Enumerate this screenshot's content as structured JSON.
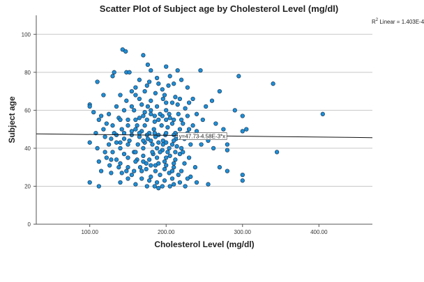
{
  "chart_data": {
    "type": "scatter",
    "title": "Scatter Plot of Subject age by Cholesterol Level (mg/dl)",
    "xlabel": "Cholesterol Level (mg/dl)",
    "ylabel": "Subject age",
    "xlim": [
      30,
      470
    ],
    "ylim": [
      0,
      110
    ],
    "x_ticks": [
      100,
      200,
      300,
      400
    ],
    "x_tick_labels": [
      "100.00",
      "200.00",
      "300.00",
      "400.00"
    ],
    "y_ticks": [
      0,
      20,
      40,
      60,
      80,
      100
    ],
    "y_tick_labels": [
      "0",
      "20",
      "40",
      "60",
      "80",
      "100"
    ],
    "grid": "horizontal",
    "fit_line": {
      "intercept": 47.73,
      "slope": -0.00458,
      "label": "y=47.73-4.58E-3*x"
    },
    "r2_text": "R",
    "r2_sup": "2",
    "r2_rest": " Linear = 1.403E-4",
    "marker_color": "#1f8fd6",
    "marker_edge": "#1a3a5a",
    "points": [
      [
        143,
        92
      ],
      [
        147,
        91
      ],
      [
        170,
        89
      ],
      [
        132,
        80
      ],
      [
        148,
        80
      ],
      [
        180,
        81
      ],
      [
        200,
        83
      ],
      [
        215,
        81
      ],
      [
        205,
        78
      ],
      [
        188,
        77
      ],
      [
        245,
        81
      ],
      [
        295,
        78
      ],
      [
        340,
        74
      ],
      [
        405,
        58
      ],
      [
        130,
        78
      ],
      [
        110,
        75
      ],
      [
        160,
        72
      ],
      [
        175,
        73
      ],
      [
        195,
        71
      ],
      [
        210,
        74
      ],
      [
        228,
        72
      ],
      [
        270,
        70
      ],
      [
        118,
        68
      ],
      [
        140,
        68
      ],
      [
        155,
        70
      ],
      [
        165,
        66
      ],
      [
        180,
        65
      ],
      [
        198,
        68
      ],
      [
        212,
        67
      ],
      [
        235,
        66
      ],
      [
        260,
        65
      ],
      [
        290,
        60
      ],
      [
        100,
        63
      ],
      [
        100,
        62
      ],
      [
        105,
        59
      ],
      [
        115,
        57
      ],
      [
        125,
        58
      ],
      [
        135,
        62
      ],
      [
        145,
        60
      ],
      [
        158,
        60
      ],
      [
        172,
        59
      ],
      [
        188,
        62
      ],
      [
        200,
        60
      ],
      [
        215,
        63
      ],
      [
        225,
        61
      ],
      [
        240,
        58
      ],
      [
        252,
        62
      ],
      [
        300,
        57
      ],
      [
        112,
        55
      ],
      [
        122,
        53
      ],
      [
        138,
        56
      ],
      [
        150,
        55
      ],
      [
        162,
        52
      ],
      [
        175,
        55
      ],
      [
        185,
        54
      ],
      [
        195,
        57
      ],
      [
        205,
        56
      ],
      [
        222,
        53
      ],
      [
        235,
        52
      ],
      [
        248,
        55
      ],
      [
        265,
        53
      ],
      [
        275,
        50
      ],
      [
        305,
        50
      ],
      [
        118,
        50
      ],
      [
        132,
        48
      ],
      [
        142,
        50
      ],
      [
        155,
        47
      ],
      [
        168,
        49
      ],
      [
        178,
        48
      ],
      [
        190,
        47
      ],
      [
        202,
        51
      ],
      [
        212,
        48
      ],
      [
        228,
        48
      ],
      [
        240,
        46
      ],
      [
        255,
        44
      ],
      [
        280,
        42
      ],
      [
        300,
        49
      ],
      [
        100,
        43
      ],
      [
        128,
        45
      ],
      [
        140,
        43
      ],
      [
        152,
        44
      ],
      [
        163,
        42
      ],
      [
        172,
        43
      ],
      [
        182,
        42
      ],
      [
        196,
        44
      ],
      [
        208,
        42
      ],
      [
        220,
        40
      ],
      [
        232,
        42
      ],
      [
        246,
        42
      ],
      [
        262,
        40
      ],
      [
        280,
        39
      ],
      [
        345,
        38
      ],
      [
        110,
        40
      ],
      [
        130,
        38
      ],
      [
        145,
        37
      ],
      [
        158,
        38
      ],
      [
        170,
        36
      ],
      [
        183,
        37
      ],
      [
        195,
        39
      ],
      [
        205,
        36
      ],
      [
        218,
        37
      ],
      [
        230,
        35
      ],
      [
        112,
        33
      ],
      [
        128,
        34
      ],
      [
        140,
        32
      ],
      [
        150,
        30
      ],
      [
        162,
        34
      ],
      [
        174,
        32
      ],
      [
        186,
        31
      ],
      [
        198,
        33
      ],
      [
        210,
        30
      ],
      [
        224,
        32
      ],
      [
        238,
        30
      ],
      [
        115,
        28
      ],
      [
        128,
        27
      ],
      [
        142,
        27
      ],
      [
        155,
        26
      ],
      [
        168,
        28
      ],
      [
        180,
        25
      ],
      [
        192,
        26
      ],
      [
        204,
        27
      ],
      [
        216,
        26
      ],
      [
        232,
        25
      ],
      [
        270,
        30
      ],
      [
        280,
        28
      ],
      [
        300,
        26
      ],
      [
        100,
        22
      ],
      [
        112,
        20
      ],
      [
        140,
        22
      ],
      [
        160,
        21
      ],
      [
        175,
        20
      ],
      [
        190,
        19
      ],
      [
        210,
        21
      ],
      [
        240,
        22
      ],
      [
        255,
        21
      ],
      [
        300,
        23
      ],
      [
        145,
        45
      ],
      [
        150,
        42
      ],
      [
        165,
        46
      ],
      [
        176,
        45
      ],
      [
        186,
        46
      ],
      [
        199,
        47
      ],
      [
        213,
        45
      ],
      [
        224,
        45
      ],
      [
        188,
        40
      ],
      [
        196,
        42
      ],
      [
        204,
        40
      ],
      [
        214,
        41
      ],
      [
        170,
        40
      ],
      [
        160,
        38
      ],
      [
        178,
        34
      ],
      [
        188,
        35
      ],
      [
        200,
        35
      ],
      [
        212,
        34
      ],
      [
        166,
        30
      ],
      [
        174,
        29
      ],
      [
        186,
        28
      ],
      [
        198,
        29
      ],
      [
        208,
        28
      ],
      [
        220,
        28
      ],
      [
        150,
        35
      ],
      [
        140,
        40
      ],
      [
        135,
        43
      ],
      [
        125,
        42
      ],
      [
        120,
        38
      ],
      [
        160,
        50
      ],
      [
        172,
        52
      ],
      [
        184,
        50
      ],
      [
        194,
        52
      ],
      [
        208,
        53
      ],
      [
        218,
        50
      ],
      [
        230,
        50
      ],
      [
        155,
        62
      ],
      [
        168,
        63
      ],
      [
        180,
        60
      ],
      [
        192,
        58
      ],
      [
        204,
        58
      ],
      [
        216,
        58
      ],
      [
        228,
        57
      ],
      [
        148,
        65
      ],
      [
        160,
        68
      ],
      [
        172,
        70
      ],
      [
        186,
        69
      ],
      [
        196,
        66
      ],
      [
        208,
        64
      ],
      [
        218,
        66
      ],
      [
        230,
        64
      ],
      [
        165,
        76
      ],
      [
        178,
        75
      ],
      [
        190,
        74
      ],
      [
        203,
        73
      ],
      [
        220,
        76
      ],
      [
        152,
        80
      ],
      [
        176,
        84
      ],
      [
        140,
        55
      ],
      [
        130,
        52
      ],
      [
        120,
        46
      ],
      [
        108,
        48
      ],
      [
        165,
        56
      ],
      [
        185,
        57
      ],
      [
        176,
        62
      ],
      [
        200,
        64
      ],
      [
        170,
        44
      ],
      [
        180,
        44
      ],
      [
        190,
        43
      ],
      [
        200,
        43
      ],
      [
        210,
        44
      ],
      [
        182,
        38
      ],
      [
        192,
        38
      ],
      [
        202,
        38
      ],
      [
        212,
        38
      ],
      [
        222,
        38
      ],
      [
        160,
        33
      ],
      [
        170,
        33
      ],
      [
        180,
        31
      ],
      [
        190,
        32
      ],
      [
        200,
        31
      ],
      [
        210,
        32
      ],
      [
        168,
        24
      ],
      [
        178,
        23
      ],
      [
        188,
        22
      ],
      [
        198,
        23
      ],
      [
        208,
        24
      ],
      [
        218,
        22
      ],
      [
        228,
        24
      ],
      [
        150,
        24
      ],
      [
        138,
        30
      ],
      [
        126,
        31
      ],
      [
        200,
        48
      ],
      [
        210,
        47
      ],
      [
        220,
        47
      ],
      [
        230,
        46
      ],
      [
        240,
        49
      ],
      [
        250,
        47
      ],
      [
        185,
        48
      ],
      [
        175,
        47
      ],
      [
        165,
        48
      ],
      [
        155,
        49
      ],
      [
        145,
        48
      ],
      [
        135,
        47
      ],
      [
        185,
        20
      ],
      [
        195,
        20
      ],
      [
        205,
        20
      ],
      [
        225,
        20
      ],
      [
        158,
        28
      ],
      [
        148,
        28
      ],
      [
        135,
        34
      ],
      [
        122,
        35
      ],
      [
        150,
        52
      ],
      [
        160,
        55
      ],
      [
        170,
        57
      ],
      [
        180,
        58
      ],
      [
        190,
        55
      ],
      [
        200,
        55
      ],
      [
        210,
        55
      ],
      [
        220,
        55
      ]
    ]
  }
}
